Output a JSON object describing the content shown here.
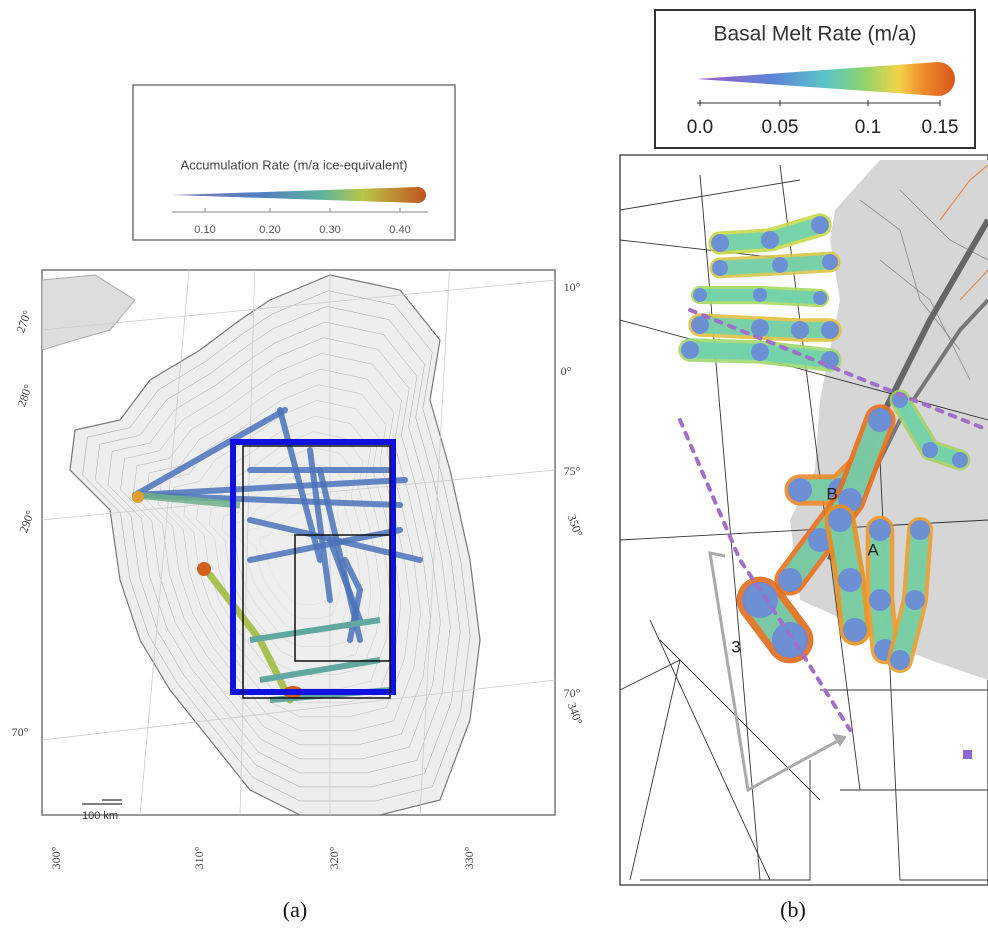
{
  "panel_a": {
    "legend": {
      "title": "Accumulation Rate (m/a ice-equivalent)",
      "ticks": [
        "0.10",
        "0.20",
        "0.30",
        "0.40"
      ]
    },
    "graticule_labels": [
      "270°",
      "280°",
      "290°",
      "70°",
      "10°",
      "0°",
      "75°",
      "350°",
      "70°",
      "340°",
      "300°",
      "310°",
      "320°",
      "330°"
    ],
    "scale_bar": "100 km",
    "caption": "(a)"
  },
  "panel_b": {
    "legend": {
      "title": "Basal Melt Rate (m/a)",
      "ticks": [
        "0.0",
        "0.05",
        "0.1",
        "0.15"
      ]
    },
    "annotations": [
      "B",
      "A",
      "3"
    ],
    "caption": "(b)"
  }
}
